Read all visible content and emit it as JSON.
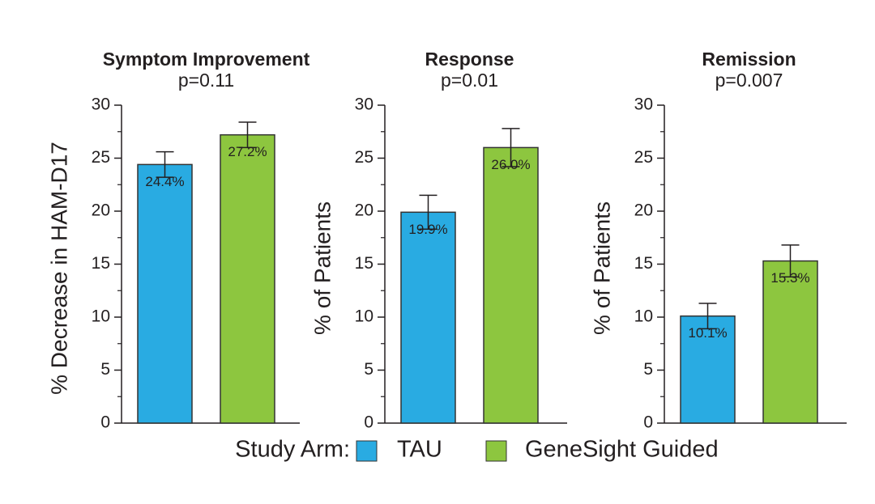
{
  "chart_data": [
    {
      "type": "bar",
      "title": "Symptom Improvement",
      "subtitle": "p=0.11",
      "ylabel": "% Decrease in HAM-D17",
      "values": [
        24.4,
        27.2
      ],
      "value_labels": [
        "24.4%",
        "27.2%"
      ],
      "errors": [
        1.2,
        1.2
      ],
      "ylim": [
        0,
        30
      ],
      "yticks": [
        0,
        5,
        10,
        15,
        20,
        25,
        30
      ],
      "minor_yticks": [
        2.5,
        7.5,
        12.5,
        17.5,
        22.5,
        27.5
      ]
    },
    {
      "type": "bar",
      "title": "Response",
      "subtitle": "p=0.01",
      "ylabel": "% of Patients",
      "values": [
        19.9,
        26.0
      ],
      "value_labels": [
        "19.9%",
        "26.0%"
      ],
      "errors": [
        1.6,
        1.8
      ],
      "ylim": [
        0,
        30
      ],
      "yticks": [
        0,
        5,
        10,
        15,
        20,
        25,
        30
      ],
      "minor_yticks": [
        2.5,
        7.5,
        12.5,
        17.5,
        22.5,
        27.5
      ]
    },
    {
      "type": "bar",
      "title": "Remission",
      "subtitle": "p=0.007",
      "ylabel": "% of Patients",
      "values": [
        10.1,
        15.3
      ],
      "value_labels": [
        "10.1%",
        "15.3%"
      ],
      "errors": [
        1.2,
        1.5
      ],
      "ylim": [
        0,
        30
      ],
      "yticks": [
        0,
        5,
        10,
        15,
        20,
        25,
        30
      ],
      "minor_yticks": [
        2.5,
        7.5,
        12.5,
        17.5,
        22.5,
        27.5
      ]
    }
  ],
  "legend": {
    "title": "Study Arm:",
    "items": [
      {
        "name": "TAU",
        "color": "#29abe2"
      },
      {
        "name": "GeneSight Guided",
        "color": "#8dc63f"
      }
    ]
  }
}
